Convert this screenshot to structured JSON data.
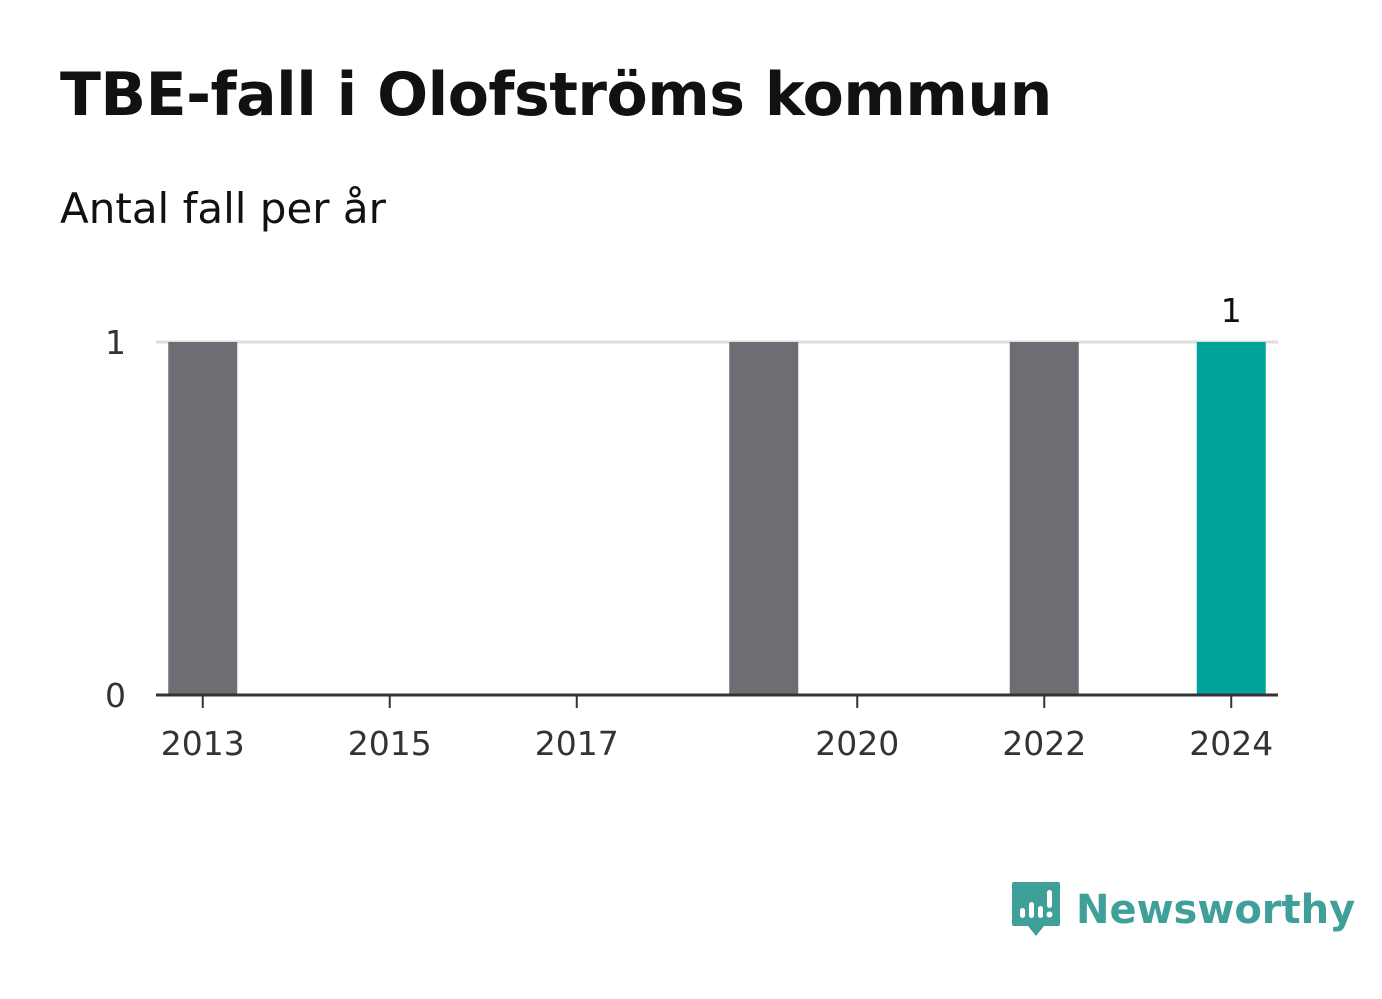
{
  "title": "TBE-fall i Olofströms kommun",
  "subtitle": "Antal fall per år",
  "colors": {
    "bar": "#6e6d73",
    "highlight": "#00a39a",
    "grid": "#dedede",
    "axis": "#333333",
    "brand": "#3f9f99"
  },
  "chart_data": {
    "type": "bar",
    "categories": [
      "2013",
      "2014",
      "2015",
      "2016",
      "2017",
      "2018",
      "2019",
      "2020",
      "2021",
      "2022",
      "2023",
      "2024"
    ],
    "values": [
      1,
      0,
      0,
      0,
      0,
      0,
      1,
      0,
      0,
      1,
      0,
      1
    ],
    "highlight_index": 11,
    "x_tick_labels": [
      "2013",
      "2015",
      "2017",
      "2020",
      "2022",
      "2024"
    ],
    "y_ticks": [
      "0",
      "1"
    ],
    "ylim": [
      0,
      1
    ],
    "data_labels": [
      {
        "category": "2024",
        "text": "1"
      }
    ],
    "grid": true,
    "legend": "none"
  },
  "brand": {
    "name": "Newsworthy",
    "icon": "newsworthy-logo-icon"
  }
}
